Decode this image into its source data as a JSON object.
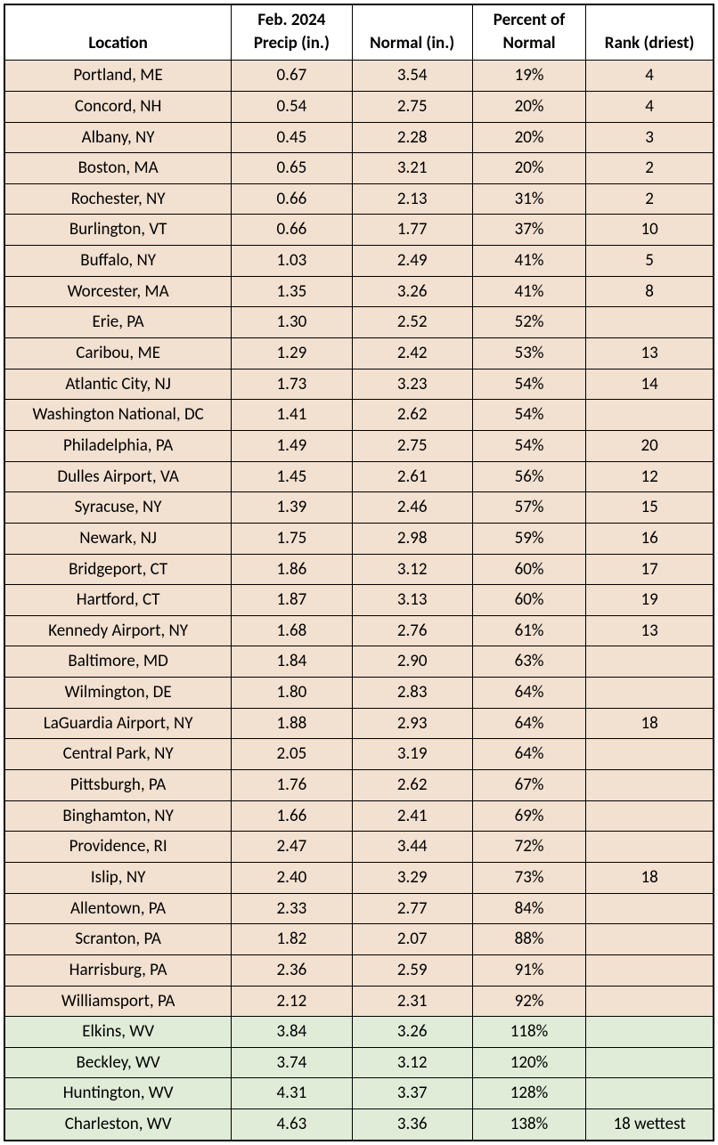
{
  "table": {
    "type": "table",
    "columns": [
      {
        "key": "location",
        "label": "Location",
        "width_pct": 32,
        "align": "center"
      },
      {
        "key": "precip",
        "label": "Feb. 2024 Precip (in.)",
        "width_pct": 17,
        "align": "center"
      },
      {
        "key": "normal",
        "label": "Normal (in.)",
        "width_pct": 17,
        "align": "center"
      },
      {
        "key": "percent",
        "label": "Percent of Normal",
        "width_pct": 16,
        "align": "center"
      },
      {
        "key": "rank",
        "label": "Rank (driest)",
        "width_pct": 18,
        "align": "center"
      }
    ],
    "colors": {
      "header_bg": "#ffffff",
      "dry_bg": "#f2e0d0",
      "wet_bg": "#e0ecd8",
      "border": "#000000",
      "text": "#000000"
    },
    "typography": {
      "font_family": "Calibri",
      "font_size_pt": 14,
      "header_weight": "bold",
      "body_weight": "normal"
    },
    "rows": [
      {
        "location": "Portland, ME",
        "precip": "0.67",
        "normal": "3.54",
        "percent": "19%",
        "rank": "4",
        "category": "dry"
      },
      {
        "location": "Concord, NH",
        "precip": "0.54",
        "normal": "2.75",
        "percent": "20%",
        "rank": "4",
        "category": "dry"
      },
      {
        "location": "Albany, NY",
        "precip": "0.45",
        "normal": "2.28",
        "percent": "20%",
        "rank": "3",
        "category": "dry"
      },
      {
        "location": "Boston, MA",
        "precip": "0.65",
        "normal": "3.21",
        "percent": "20%",
        "rank": "2",
        "category": "dry"
      },
      {
        "location": "Rochester, NY",
        "precip": "0.66",
        "normal": "2.13",
        "percent": "31%",
        "rank": "2",
        "category": "dry"
      },
      {
        "location": "Burlington, VT",
        "precip": "0.66",
        "normal": "1.77",
        "percent": "37%",
        "rank": "10",
        "category": "dry"
      },
      {
        "location": "Buffalo, NY",
        "precip": "1.03",
        "normal": "2.49",
        "percent": "41%",
        "rank": "5",
        "category": "dry"
      },
      {
        "location": "Worcester, MA",
        "precip": "1.35",
        "normal": "3.26",
        "percent": "41%",
        "rank": "8",
        "category": "dry"
      },
      {
        "location": "Erie, PA",
        "precip": "1.30",
        "normal": "2.52",
        "percent": "52%",
        "rank": "",
        "category": "dry"
      },
      {
        "location": "Caribou, ME",
        "precip": "1.29",
        "normal": "2.42",
        "percent": "53%",
        "rank": "13",
        "category": "dry"
      },
      {
        "location": "Atlantic City, NJ",
        "precip": "1.73",
        "normal": "3.23",
        "percent": "54%",
        "rank": "14",
        "category": "dry"
      },
      {
        "location": "Washington National, DC",
        "precip": "1.41",
        "normal": "2.62",
        "percent": "54%",
        "rank": "",
        "category": "dry"
      },
      {
        "location": "Philadelphia, PA",
        "precip": "1.49",
        "normal": "2.75",
        "percent": "54%",
        "rank": "20",
        "category": "dry"
      },
      {
        "location": "Dulles Airport, VA",
        "precip": "1.45",
        "normal": "2.61",
        "percent": "56%",
        "rank": "12",
        "category": "dry"
      },
      {
        "location": "Syracuse, NY",
        "precip": "1.39",
        "normal": "2.46",
        "percent": "57%",
        "rank": "15",
        "category": "dry"
      },
      {
        "location": "Newark, NJ",
        "precip": "1.75",
        "normal": "2.98",
        "percent": "59%",
        "rank": "16",
        "category": "dry"
      },
      {
        "location": "Bridgeport, CT",
        "precip": "1.86",
        "normal": "3.12",
        "percent": "60%",
        "rank": "17",
        "category": "dry"
      },
      {
        "location": "Hartford, CT",
        "precip": "1.87",
        "normal": "3.13",
        "percent": "60%",
        "rank": "19",
        "category": "dry"
      },
      {
        "location": "Kennedy Airport, NY",
        "precip": "1.68",
        "normal": "2.76",
        "percent": "61%",
        "rank": "13",
        "category": "dry"
      },
      {
        "location": "Baltimore, MD",
        "precip": "1.84",
        "normal": "2.90",
        "percent": "63%",
        "rank": "",
        "category": "dry"
      },
      {
        "location": "Wilmington, DE",
        "precip": "1.80",
        "normal": "2.83",
        "percent": "64%",
        "rank": "",
        "category": "dry"
      },
      {
        "location": "LaGuardia Airport, NY",
        "precip": "1.88",
        "normal": "2.93",
        "percent": "64%",
        "rank": "18",
        "category": "dry"
      },
      {
        "location": "Central Park, NY",
        "precip": "2.05",
        "normal": "3.19",
        "percent": "64%",
        "rank": "",
        "category": "dry"
      },
      {
        "location": "Pittsburgh, PA",
        "precip": "1.76",
        "normal": "2.62",
        "percent": "67%",
        "rank": "",
        "category": "dry"
      },
      {
        "location": "Binghamton, NY",
        "precip": "1.66",
        "normal": "2.41",
        "percent": "69%",
        "rank": "",
        "category": "dry"
      },
      {
        "location": "Providence, RI",
        "precip": "2.47",
        "normal": "3.44",
        "percent": "72%",
        "rank": "",
        "category": "dry"
      },
      {
        "location": "Islip, NY",
        "precip": "2.40",
        "normal": "3.29",
        "percent": "73%",
        "rank": "18",
        "category": "dry"
      },
      {
        "location": "Allentown, PA",
        "precip": "2.33",
        "normal": "2.77",
        "percent": "84%",
        "rank": "",
        "category": "dry"
      },
      {
        "location": "Scranton, PA",
        "precip": "1.82",
        "normal": "2.07",
        "percent": "88%",
        "rank": "",
        "category": "dry"
      },
      {
        "location": "Harrisburg, PA",
        "precip": "2.36",
        "normal": "2.59",
        "percent": "91%",
        "rank": "",
        "category": "dry"
      },
      {
        "location": "Williamsport, PA",
        "precip": "2.12",
        "normal": "2.31",
        "percent": "92%",
        "rank": "",
        "category": "dry"
      },
      {
        "location": "Elkins, WV",
        "precip": "3.84",
        "normal": "3.26",
        "percent": "118%",
        "rank": "",
        "category": "wet"
      },
      {
        "location": "Beckley, WV",
        "precip": "3.74",
        "normal": "3.12",
        "percent": "120%",
        "rank": "",
        "category": "wet"
      },
      {
        "location": "Huntington, WV",
        "precip": "4.31",
        "normal": "3.37",
        "percent": "128%",
        "rank": "",
        "category": "wet"
      },
      {
        "location": "Charleston, WV",
        "precip": "4.63",
        "normal": "3.36",
        "percent": "138%",
        "rank": "18 wettest",
        "category": "wet"
      }
    ]
  }
}
